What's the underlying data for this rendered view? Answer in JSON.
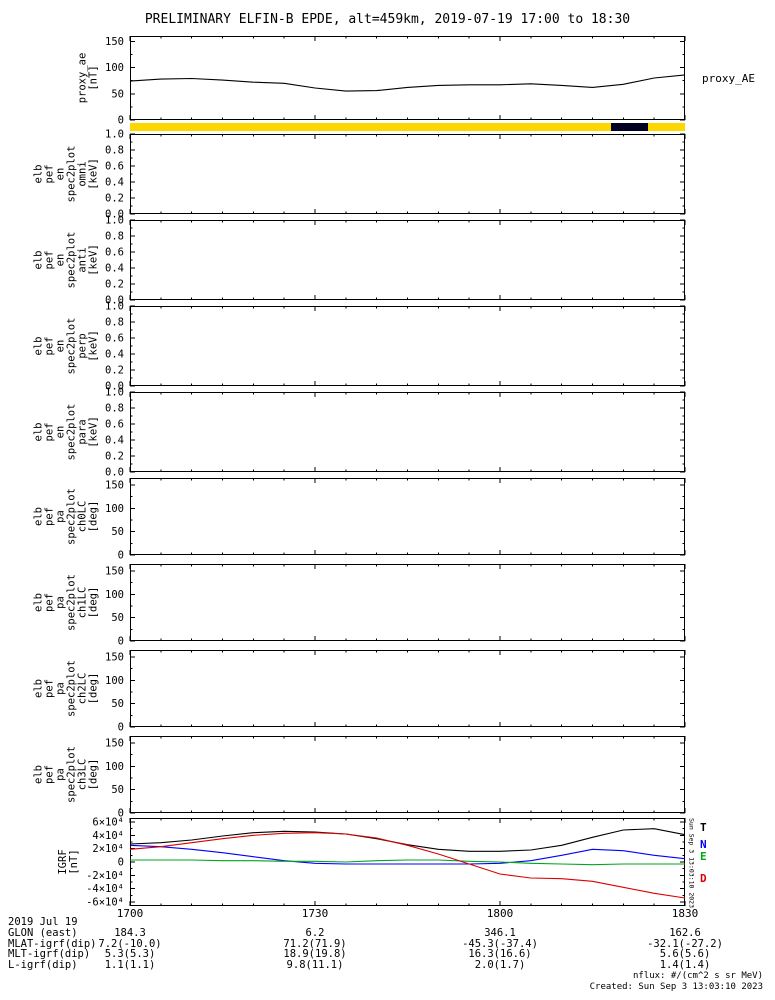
{
  "title": "PRELIMINARY ELFIN-B EPDE, alt=459km, 2019-07-19 17:00 to 18:30",
  "side_note": "Sun Sep  3 13:03:10 2023",
  "x_axis": {
    "range_min": [
      0,
      90
    ],
    "major_ticks_min": [
      0,
      30,
      60,
      90
    ],
    "minor_step_min": 5,
    "tick_labels": [
      "1700",
      "1730",
      "1800",
      "1830"
    ]
  },
  "footer": {
    "date_label": "2019 Jul 19",
    "rows": [
      {
        "label": "GLON (east)",
        "values": [
          "184.3",
          "6.2",
          "346.1",
          "162.6"
        ]
      },
      {
        "label": "MLAT-igrf(dip)",
        "values": [
          "7.2(-10.0)",
          "71.2(71.9)",
          "-45.3(-37.4)",
          "-32.1(-27.2)"
        ]
      },
      {
        "label": "MLT-igrf(dip)",
        "values": [
          "5.3(5.3)",
          "18.9(19.8)",
          "16.3(16.6)",
          "5.6(5.6)"
        ]
      },
      {
        "label": "L-igrf(dip)",
        "values": [
          "1.1(1.1)",
          "9.8(11.1)",
          "2.0(1.7)",
          "1.4(1.4)"
        ]
      }
    ],
    "notes": [
      "nflux: #/(cm^2 s sr MeV)",
      "Created: Sun Sep  3 13:03:10 2023"
    ]
  },
  "chart_data": [
    {
      "id": "proxy_ae",
      "type": "line",
      "ylabel_lines": [
        "proxy_ae",
        "[nT]"
      ],
      "right_label": "proxy_AE",
      "ylim": [
        0,
        160
      ],
      "yticks": [
        0,
        50,
        100,
        150
      ],
      "ytick_labels": [
        "0",
        "50",
        "100",
        "150"
      ],
      "x": [
        0,
        5,
        10,
        15,
        20,
        25,
        30,
        35,
        40,
        45,
        50,
        55,
        60,
        65,
        70,
        75,
        80,
        85,
        90
      ],
      "series": [
        {
          "name": "proxy_AE",
          "color": "#000000",
          "values": [
            74,
            78,
            79,
            76,
            72,
            70,
            61,
            55,
            56,
            62,
            66,
            67,
            67,
            69,
            66,
            62,
            68,
            80,
            86
          ]
        }
      ]
    },
    {
      "id": "mode_bar",
      "type": "bar_strip",
      "color": "#ffd700",
      "segments": [
        {
          "start": 78,
          "end": 84,
          "color": "#000022"
        }
      ]
    },
    {
      "id": "spec_omni",
      "type": "empty",
      "ylabel_lines": [
        "elb",
        "pef",
        "en",
        "spec2plot",
        "omni",
        "[keV]"
      ],
      "ylim": [
        0,
        1
      ],
      "yticks": [
        0,
        0.2,
        0.4,
        0.6,
        0.8,
        1
      ],
      "ytick_labels": [
        "0.0",
        "0.2",
        "0.4",
        "0.6",
        "0.8",
        "1.0"
      ]
    },
    {
      "id": "spec_anti",
      "type": "empty",
      "ylabel_lines": [
        "elb",
        "pef",
        "en",
        "spec2plot",
        "anti",
        "[keV]"
      ],
      "ylim": [
        0,
        1
      ],
      "yticks": [
        0,
        0.2,
        0.4,
        0.6,
        0.8,
        1
      ],
      "ytick_labels": [
        "0.0",
        "0.2",
        "0.4",
        "0.6",
        "0.8",
        "1.0"
      ]
    },
    {
      "id": "spec_perp",
      "type": "empty",
      "ylabel_lines": [
        "elb",
        "pef",
        "en",
        "spec2plot",
        "perp",
        "[keV]"
      ],
      "ylim": [
        0,
        1
      ],
      "yticks": [
        0,
        0.2,
        0.4,
        0.6,
        0.8,
        1
      ],
      "ytick_labels": [
        "0.0",
        "0.2",
        "0.4",
        "0.6",
        "0.8",
        "1.0"
      ]
    },
    {
      "id": "spec_para",
      "type": "empty",
      "ylabel_lines": [
        "elb",
        "pef",
        "en",
        "spec2plot",
        "para",
        "[keV]"
      ],
      "ylim": [
        0,
        1
      ],
      "yticks": [
        0,
        0.2,
        0.4,
        0.6,
        0.8,
        1
      ],
      "ytick_labels": [
        "0.0",
        "0.2",
        "0.4",
        "0.6",
        "0.8",
        "1.0"
      ]
    },
    {
      "id": "spec_ch0lc",
      "type": "empty",
      "ylabel_lines": [
        "elb",
        "pef",
        "pa",
        "spec2plot",
        "ch0LC",
        "[deg]"
      ],
      "ylim": [
        0,
        165
      ],
      "yticks": [
        0,
        50,
        100,
        150
      ],
      "ytick_labels": [
        "0",
        "50",
        "100",
        "150"
      ]
    },
    {
      "id": "spec_ch1lc",
      "type": "empty",
      "ylabel_lines": [
        "elb",
        "pef",
        "pa",
        "spec2plot",
        "ch1LC",
        "[deg]"
      ],
      "ylim": [
        0,
        165
      ],
      "yticks": [
        0,
        50,
        100,
        150
      ],
      "ytick_labels": [
        "0",
        "50",
        "100",
        "150"
      ]
    },
    {
      "id": "spec_ch2lc",
      "type": "empty",
      "ylabel_lines": [
        "elb",
        "pef",
        "pa",
        "spec2plot",
        "ch2LC",
        "[deg]"
      ],
      "ylim": [
        0,
        165
      ],
      "yticks": [
        0,
        50,
        100,
        150
      ],
      "ytick_labels": [
        "0",
        "50",
        "100",
        "150"
      ]
    },
    {
      "id": "spec_ch3lc",
      "type": "empty",
      "ylabel_lines": [
        "elb",
        "pef",
        "pa",
        "spec2plot",
        "ch3LC",
        "[deg]"
      ],
      "ylim": [
        0,
        165
      ],
      "yticks": [
        0,
        50,
        100,
        150
      ],
      "ytick_labels": [
        "0",
        "50",
        "100",
        "150"
      ]
    },
    {
      "id": "igrf",
      "type": "line",
      "ylabel_lines": [
        "IGRF",
        "[nT]"
      ],
      "ylim": [
        -66000,
        66000
      ],
      "yticks": [
        -60000,
        -40000,
        -20000,
        0,
        20000,
        40000,
        60000
      ],
      "ytick_labels": [
        "-6×10⁴",
        "-4×10⁴",
        "-2×10⁴",
        "0",
        "2×10⁴",
        "4×10⁴",
        "6×10⁴"
      ],
      "legend": [
        "T",
        "N",
        "E",
        "D"
      ],
      "x": [
        0,
        5,
        10,
        15,
        20,
        25,
        30,
        35,
        40,
        45,
        50,
        55,
        60,
        65,
        70,
        75,
        80,
        85,
        90
      ],
      "series": [
        {
          "name": "T",
          "color": "#000000",
          "values": [
            27000,
            29000,
            33000,
            39000,
            44000,
            46000,
            45000,
            42000,
            35000,
            26000,
            19000,
            16000,
            16000,
            18000,
            25000,
            37000,
            48000,
            50000,
            41000
          ]
        },
        {
          "name": "N",
          "color": "#0000ff",
          "values": [
            25000,
            23000,
            19000,
            14000,
            8000,
            2000,
            -2000,
            -3000,
            -3000,
            -3000,
            -3000,
            -3000,
            -2000,
            2000,
            10000,
            19000,
            17000,
            10000,
            5000
          ]
        },
        {
          "name": "E",
          "color": "#00a61b",
          "values": [
            3000,
            3000,
            3000,
            2000,
            2000,
            1000,
            1000,
            0,
            2000,
            3000,
            3000,
            1000,
            0,
            -2000,
            -3000,
            -4000,
            -3000,
            -3000,
            -3000
          ]
        },
        {
          "name": "D",
          "color": "#dd0000",
          "values": [
            19000,
            23000,
            29000,
            35000,
            40000,
            43000,
            44000,
            42000,
            36000,
            25000,
            12000,
            -3000,
            -18000,
            -24000,
            -25000,
            -29000,
            -38000,
            -47000,
            -54000
          ]
        }
      ]
    }
  ]
}
